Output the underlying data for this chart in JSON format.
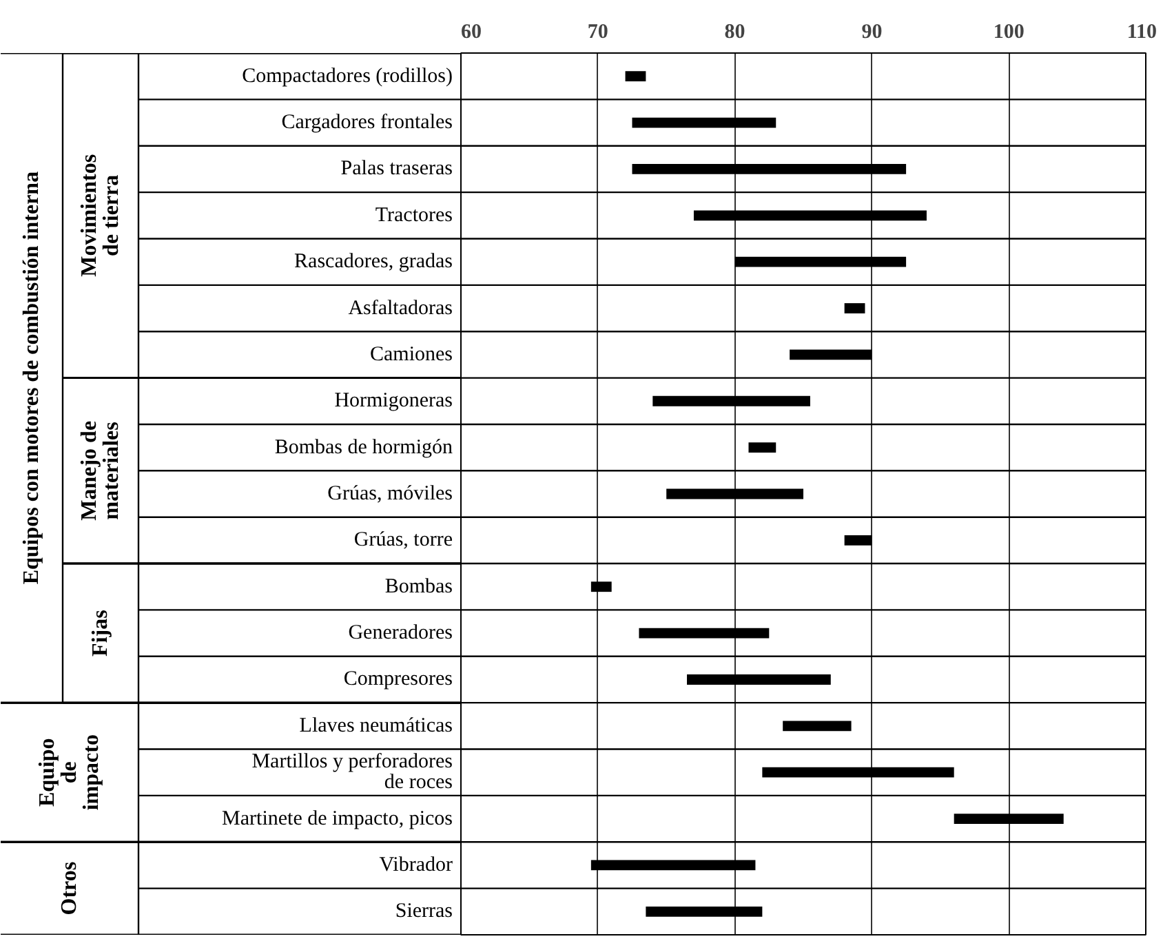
{
  "chart_data": {
    "type": "bar",
    "orientation": "horizontal",
    "categories": [
      "Compactadores (rodillos)",
      "Cargadores frontales",
      "Palas traseras",
      "Tractores",
      "Rascadores, gradas",
      "Asfaltadoras",
      "Camiones",
      "Hormigoneras",
      "Bombas de hormigón",
      "Grúas, móviles",
      "Grúas, torre",
      "Bombas",
      "Generadores",
      "Compresores",
      "Llaves neumáticas",
      "Martillos y perforadores\nde roces",
      "Martinete de impacto, picos",
      "Vibrador",
      "Sierras"
    ],
    "base": [
      72,
      72.5,
      72.5,
      77,
      80,
      88,
      84,
      74,
      81,
      75,
      88,
      69.5,
      73,
      76.5,
      83.5,
      82,
      96,
      69.5,
      73.5
    ],
    "values": [
      1.5,
      10.5,
      20,
      17,
      12.5,
      1.5,
      6,
      11.5,
      2,
      10,
      2,
      1.5,
      9.5,
      10.5,
      5,
      14,
      8,
      12,
      8.5
    ],
    "color": "#000000",
    "xlim": [
      60,
      110
    ],
    "xticks": [
      60,
      70,
      80,
      90,
      100,
      110
    ],
    "grid": true,
    "annotations": [
      "Equipos con motores de combustión interna",
      "Movimientos\nde tierra",
      "Manejo de\nmateriales",
      "Fijas",
      "Equipo\nde\nimpacto",
      "Otros"
    ]
  }
}
